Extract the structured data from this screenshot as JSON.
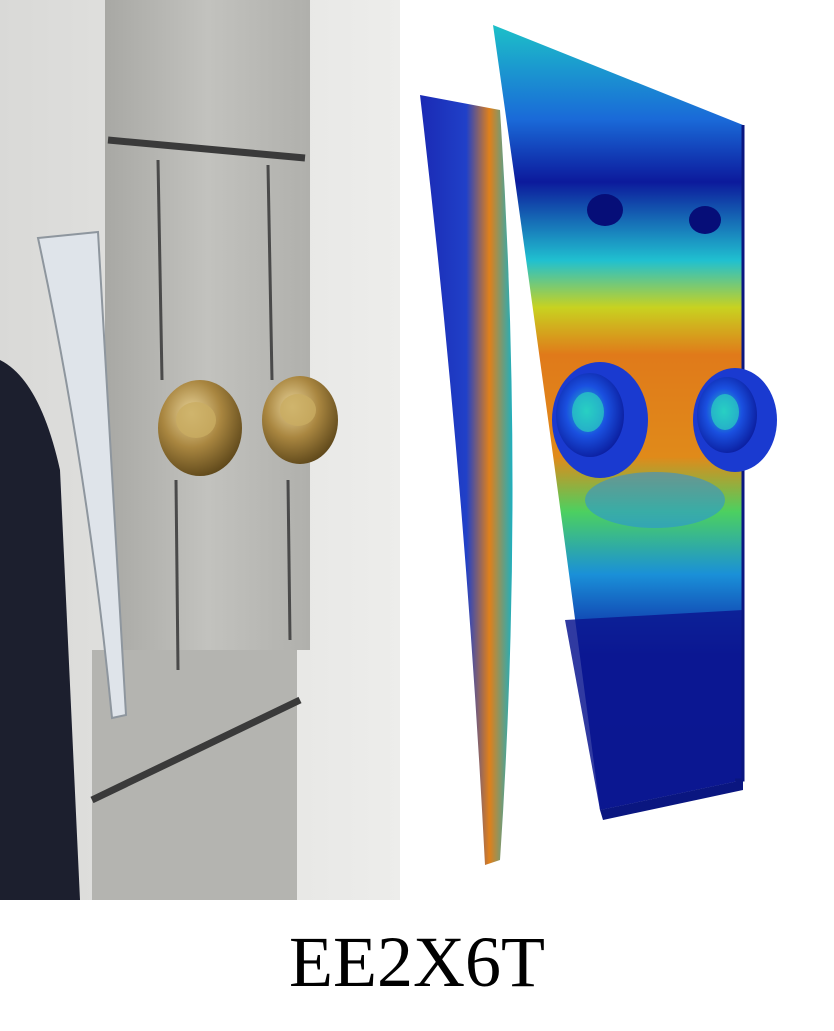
{
  "caption": "EE2X6T",
  "colors": {
    "steel_plate": "#b8b8b4",
    "wall": "#e6e6e4",
    "bolt_brass": "#9a7a3c",
    "contour_low": "#0a1a9a",
    "contour_mid": "#1cc0d0",
    "contour_high_mid": "#c8d21e",
    "contour_high": "#e07a1a"
  }
}
